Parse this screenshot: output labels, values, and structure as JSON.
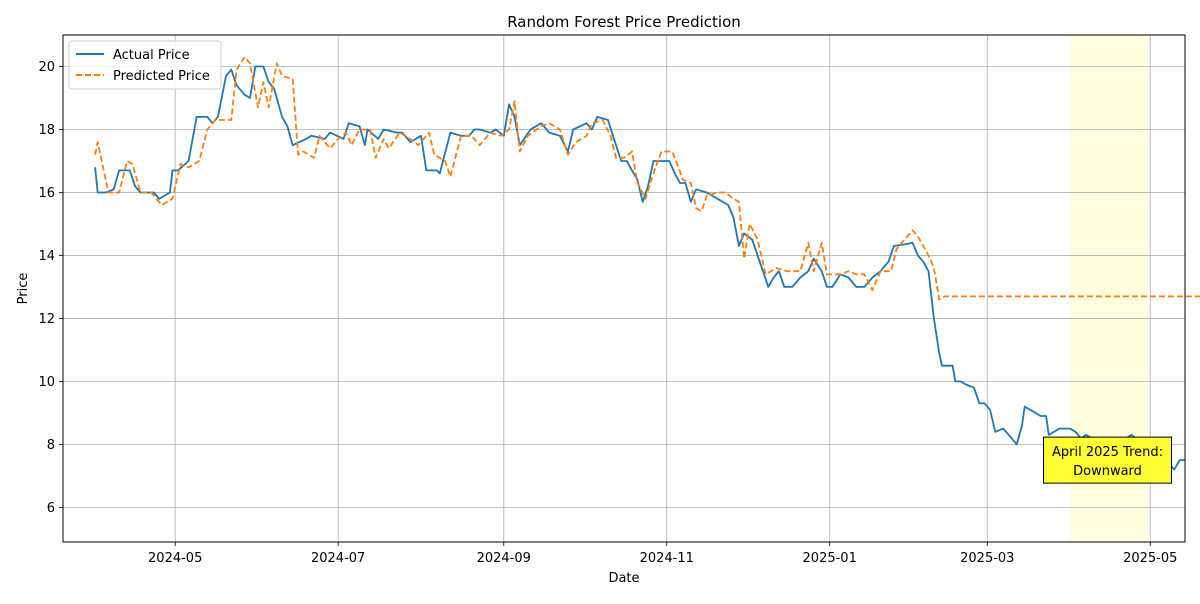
{
  "chart_data": {
    "type": "line",
    "title": "Random Forest Price Prediction",
    "xlabel": "Date",
    "ylabel": "Price",
    "x_tick_labels": [
      "2024-05",
      "2024-07",
      "2024-09",
      "2024-11",
      "2025-01",
      "2025-03",
      "2025-05"
    ],
    "x_ticks": [
      "2024-05-01",
      "2024-07-01",
      "2024-09-01",
      "2024-11-01",
      "2025-01-01",
      "2025-03-01",
      "2025-05-01"
    ],
    "y_ticks": [
      6,
      8,
      10,
      12,
      14,
      16,
      18,
      20
    ],
    "ylim": [
      4.9,
      21.0
    ],
    "xlim": [
      "2024-03-20",
      "2025-05-14"
    ],
    "grid": true,
    "legend_position": "top-left",
    "highlight_span": {
      "start": "2025-04-01",
      "end": "2025-04-30",
      "color": "#ffffe0"
    },
    "annotation": {
      "text_line1": "April 2025 Trend:",
      "text_line2": "Downward",
      "date": "2025-04-15",
      "y": 7.5,
      "color": "#ffff33"
    },
    "series": [
      {
        "name": "Actual Price",
        "color": "#1f77b4",
        "style": "solid",
        "points": [
          [
            "2024-04-01",
            16.8
          ],
          [
            "2024-04-02",
            16.0
          ],
          [
            "2024-04-05",
            16.0
          ],
          [
            "2024-04-08",
            16.1
          ],
          [
            "2024-04-10",
            16.7
          ],
          [
            "2024-04-14",
            16.7
          ],
          [
            "2024-04-16",
            16.2
          ],
          [
            "2024-04-18",
            16.0
          ],
          [
            "2024-04-23",
            16.0
          ],
          [
            "2024-04-25",
            15.8
          ],
          [
            "2024-04-29",
            16.0
          ],
          [
            "2024-04-30",
            16.7
          ],
          [
            "2024-05-02",
            16.7
          ],
          [
            "2024-05-06",
            17.0
          ],
          [
            "2024-05-09",
            18.4
          ],
          [
            "2024-05-13",
            18.4
          ],
          [
            "2024-05-15",
            18.2
          ],
          [
            "2024-05-17",
            18.4
          ],
          [
            "2024-05-20",
            19.7
          ],
          [
            "2024-05-22",
            19.9
          ],
          [
            "2024-05-24",
            19.4
          ],
          [
            "2024-05-27",
            19.1
          ],
          [
            "2024-05-29",
            19.0
          ],
          [
            "2024-05-31",
            20.0
          ],
          [
            "2024-06-03",
            20.0
          ],
          [
            "2024-06-05",
            19.5
          ],
          [
            "2024-06-07",
            19.3
          ],
          [
            "2024-06-10",
            18.4
          ],
          [
            "2024-06-12",
            18.1
          ],
          [
            "2024-06-14",
            17.5
          ],
          [
            "2024-06-19",
            17.7
          ],
          [
            "2024-06-21",
            17.8
          ],
          [
            "2024-06-26",
            17.7
          ],
          [
            "2024-06-28",
            17.9
          ],
          [
            "2024-07-03",
            17.7
          ],
          [
            "2024-07-05",
            18.2
          ],
          [
            "2024-07-09",
            18.1
          ],
          [
            "2024-07-11",
            17.5
          ],
          [
            "2024-07-12",
            18.0
          ],
          [
            "2024-07-16",
            17.7
          ],
          [
            "2024-07-18",
            18.0
          ],
          [
            "2024-07-23",
            17.9
          ],
          [
            "2024-07-25",
            17.9
          ],
          [
            "2024-07-28",
            17.6
          ],
          [
            "2024-08-01",
            17.8
          ],
          [
            "2024-08-03",
            16.7
          ],
          [
            "2024-08-07",
            16.7
          ],
          [
            "2024-08-08",
            16.6
          ],
          [
            "2024-08-12",
            17.9
          ],
          [
            "2024-08-16",
            17.8
          ],
          [
            "2024-08-19",
            17.8
          ],
          [
            "2024-08-21",
            18.0
          ],
          [
            "2024-08-23",
            18.0
          ],
          [
            "2024-08-27",
            17.9
          ],
          [
            "2024-08-29",
            18.0
          ],
          [
            "2024-09-01",
            17.8
          ],
          [
            "2024-09-03",
            18.8
          ],
          [
            "2024-09-05",
            18.4
          ],
          [
            "2024-09-07",
            17.5
          ],
          [
            "2024-09-11",
            18.0
          ],
          [
            "2024-09-15",
            18.2
          ],
          [
            "2024-09-18",
            17.9
          ],
          [
            "2024-09-22",
            17.8
          ],
          [
            "2024-09-25",
            17.3
          ],
          [
            "2024-09-27",
            18.0
          ],
          [
            "2024-10-02",
            18.2
          ],
          [
            "2024-10-04",
            18.0
          ],
          [
            "2024-10-06",
            18.4
          ],
          [
            "2024-10-10",
            18.3
          ],
          [
            "2024-10-13",
            17.5
          ],
          [
            "2024-10-15",
            17.0
          ],
          [
            "2024-10-17",
            17.0
          ],
          [
            "2024-10-21",
            16.4
          ],
          [
            "2024-10-23",
            15.7
          ],
          [
            "2024-10-25",
            16.2
          ],
          [
            "2024-10-27",
            17.0
          ],
          [
            "2024-10-31",
            17.0
          ],
          [
            "2024-11-02",
            17.0
          ],
          [
            "2024-11-04",
            16.6
          ],
          [
            "2024-11-06",
            16.3
          ],
          [
            "2024-11-08",
            16.3
          ],
          [
            "2024-11-10",
            15.7
          ],
          [
            "2024-11-12",
            16.1
          ],
          [
            "2024-11-16",
            16.0
          ],
          [
            "2024-11-20",
            15.8
          ],
          [
            "2024-11-24",
            15.6
          ],
          [
            "2024-11-26",
            15.2
          ],
          [
            "2024-11-28",
            14.3
          ],
          [
            "2024-11-30",
            14.7
          ],
          [
            "2024-12-03",
            14.5
          ],
          [
            "2024-12-05",
            14.0
          ],
          [
            "2024-12-09",
            13.0
          ],
          [
            "2024-12-11",
            13.3
          ],
          [
            "2024-12-13",
            13.5
          ],
          [
            "2024-12-15",
            13.0
          ],
          [
            "2024-12-18",
            13.0
          ],
          [
            "2024-12-21",
            13.3
          ],
          [
            "2024-12-24",
            13.5
          ],
          [
            "2024-12-26",
            13.9
          ],
          [
            "2024-12-29",
            13.5
          ],
          [
            "2024-12-31",
            13.0
          ],
          [
            "2025-01-02",
            13.0
          ],
          [
            "2025-01-05",
            13.4
          ],
          [
            "2025-01-08",
            13.3
          ],
          [
            "2025-01-11",
            13.0
          ],
          [
            "2025-01-14",
            13.0
          ],
          [
            "2025-01-17",
            13.3
          ],
          [
            "2025-01-20",
            13.5
          ],
          [
            "2025-01-23",
            13.8
          ],
          [
            "2025-01-25",
            14.3
          ],
          [
            "2025-01-29",
            14.35
          ],
          [
            "2025-02-01",
            14.4
          ],
          [
            "2025-02-03",
            14.0
          ],
          [
            "2025-02-05",
            13.8
          ],
          [
            "2025-02-07",
            13.5
          ],
          [
            "2025-02-09",
            12.0
          ],
          [
            "2025-02-11",
            10.9
          ],
          [
            "2025-02-12",
            10.5
          ],
          [
            "2025-02-16",
            10.5
          ],
          [
            "2025-02-17",
            10.0
          ],
          [
            "2025-02-19",
            10.0
          ],
          [
            "2025-02-21",
            9.9
          ],
          [
            "2025-02-24",
            9.8
          ],
          [
            "2025-02-26",
            9.3
          ],
          [
            "2025-02-28",
            9.3
          ],
          [
            "2025-03-02",
            9.1
          ],
          [
            "2025-03-04",
            8.4
          ],
          [
            "2025-03-07",
            8.5
          ],
          [
            "2025-03-10",
            8.2
          ],
          [
            "2025-03-12",
            8.0
          ],
          [
            "2025-03-14",
            8.6
          ],
          [
            "2025-03-15",
            9.2
          ],
          [
            "2025-03-17",
            9.1
          ],
          [
            "2025-03-21",
            8.9
          ],
          [
            "2025-03-23",
            8.9
          ],
          [
            "2025-03-24",
            8.3
          ],
          [
            "2025-03-28",
            8.5
          ],
          [
            "2025-04-01",
            8.5
          ],
          [
            "2025-04-03",
            8.4
          ],
          [
            "2025-04-05",
            8.2
          ],
          [
            "2025-04-07",
            8.3
          ],
          [
            "2025-04-09",
            8.2
          ],
          [
            "2025-04-12",
            8.0
          ],
          [
            "2025-04-14",
            8.1
          ],
          [
            "2025-04-16",
            7.9
          ],
          [
            "2025-04-20",
            7.9
          ],
          [
            "2025-04-22",
            8.2
          ],
          [
            "2025-04-24",
            8.3
          ],
          [
            "2025-04-27",
            8.1
          ],
          [
            "2025-04-30",
            8.0
          ],
          [
            "2025-05-02",
            7.8
          ],
          [
            "2025-05-04",
            7.4
          ],
          [
            "2025-05-06",
            7.2
          ],
          [
            "2025-05-08",
            7.4
          ],
          [
            "2025-05-10",
            7.2
          ],
          [
            "2025-05-12",
            7.5
          ],
          [
            "2025-05-14",
            7.5
          ]
        ]
      },
      {
        "name": "Predicted Price",
        "color": "#ff7f0e",
        "style": "dashed",
        "points": [
          [
            "2024-04-01",
            17.2
          ],
          [
            "2024-04-02",
            17.6
          ],
          [
            "2024-04-06",
            16.0
          ],
          [
            "2024-04-10",
            16.0
          ],
          [
            "2024-04-13",
            17.0
          ],
          [
            "2024-04-15",
            16.9
          ],
          [
            "2024-04-18",
            16.0
          ],
          [
            "2024-04-22",
            16.0
          ],
          [
            "2024-04-26",
            15.6
          ],
          [
            "2024-04-30",
            15.8
          ],
          [
            "2024-05-03",
            16.9
          ],
          [
            "2024-05-06",
            16.8
          ],
          [
            "2024-05-10",
            17.0
          ],
          [
            "2024-05-13",
            18.0
          ],
          [
            "2024-05-16",
            18.3
          ],
          [
            "2024-05-20",
            18.3
          ],
          [
            "2024-05-22",
            18.3
          ],
          [
            "2024-05-24",
            19.9
          ],
          [
            "2024-05-27",
            20.3
          ],
          [
            "2024-05-29",
            20.1
          ],
          [
            "2024-06-01",
            18.7
          ],
          [
            "2024-06-03",
            19.5
          ],
          [
            "2024-06-05",
            18.7
          ],
          [
            "2024-06-08",
            20.1
          ],
          [
            "2024-06-10",
            19.7
          ],
          [
            "2024-06-14",
            19.6
          ],
          [
            "2024-06-16",
            17.2
          ],
          [
            "2024-06-18",
            17.3
          ],
          [
            "2024-06-22",
            17.1
          ],
          [
            "2024-06-24",
            17.8
          ],
          [
            "2024-06-28",
            17.4
          ],
          [
            "2024-07-01",
            17.7
          ],
          [
            "2024-07-04",
            17.9
          ],
          [
            "2024-07-06",
            17.5
          ],
          [
            "2024-07-09",
            18.0
          ],
          [
            "2024-07-13",
            18.0
          ],
          [
            "2024-07-15",
            17.1
          ],
          [
            "2024-07-18",
            17.7
          ],
          [
            "2024-07-20",
            17.4
          ],
          [
            "2024-07-24",
            17.9
          ],
          [
            "2024-07-28",
            17.7
          ],
          [
            "2024-07-31",
            17.5
          ],
          [
            "2024-08-04",
            17.9
          ],
          [
            "2024-08-06",
            17.2
          ],
          [
            "2024-08-10",
            17.0
          ],
          [
            "2024-08-12",
            16.5
          ],
          [
            "2024-08-16",
            17.8
          ],
          [
            "2024-08-20",
            17.8
          ],
          [
            "2024-08-23",
            17.5
          ],
          [
            "2024-08-27",
            17.9
          ],
          [
            "2024-08-31",
            17.8
          ],
          [
            "2024-09-03",
            18.0
          ],
          [
            "2024-09-05",
            18.9
          ],
          [
            "2024-09-07",
            17.3
          ],
          [
            "2024-09-10",
            17.8
          ],
          [
            "2024-09-15",
            18.1
          ],
          [
            "2024-09-18",
            18.2
          ],
          [
            "2024-09-22",
            18.0
          ],
          [
            "2024-09-25",
            17.2
          ],
          [
            "2024-09-28",
            17.6
          ],
          [
            "2024-10-02",
            17.8
          ],
          [
            "2024-10-04",
            18.2
          ],
          [
            "2024-10-08",
            18.3
          ],
          [
            "2024-10-11",
            17.8
          ],
          [
            "2024-10-13",
            17.1
          ],
          [
            "2024-10-16",
            17.1
          ],
          [
            "2024-10-19",
            17.3
          ],
          [
            "2024-10-21",
            16.3
          ],
          [
            "2024-10-24",
            15.8
          ],
          [
            "2024-10-27",
            16.6
          ],
          [
            "2024-10-30",
            17.3
          ],
          [
            "2024-11-03",
            17.3
          ],
          [
            "2024-11-05",
            16.9
          ],
          [
            "2024-11-07",
            16.4
          ],
          [
            "2024-11-10",
            16.3
          ],
          [
            "2024-11-12",
            15.5
          ],
          [
            "2024-11-14",
            15.4
          ],
          [
            "2024-11-16",
            15.9
          ],
          [
            "2024-11-20",
            16.0
          ],
          [
            "2024-11-23",
            16.0
          ],
          [
            "2024-11-26",
            15.8
          ],
          [
            "2024-11-28",
            15.7
          ],
          [
            "2024-11-30",
            13.9
          ],
          [
            "2024-12-02",
            15.0
          ],
          [
            "2024-12-05",
            14.5
          ],
          [
            "2024-12-08",
            13.4
          ],
          [
            "2024-12-12",
            13.6
          ],
          [
            "2024-12-16",
            13.5
          ],
          [
            "2024-12-21",
            13.5
          ],
          [
            "2024-12-24",
            14.4
          ],
          [
            "2024-12-26",
            13.5
          ],
          [
            "2024-12-29",
            14.4
          ],
          [
            "2024-12-31",
            13.4
          ],
          [
            "2025-01-05",
            13.4
          ],
          [
            "2025-01-08",
            13.5
          ],
          [
            "2025-01-11",
            13.4
          ],
          [
            "2025-01-14",
            13.4
          ],
          [
            "2025-01-17",
            12.9
          ],
          [
            "2025-01-20",
            13.5
          ],
          [
            "2025-01-24",
            13.5
          ],
          [
            "2025-01-26",
            14.2
          ],
          [
            "2025-01-29",
            14.5
          ],
          [
            "2025-02-01",
            14.8
          ],
          [
            "2025-02-03",
            14.6
          ],
          [
            "2025-02-07",
            14.0
          ],
          [
            "2025-02-09",
            13.6
          ],
          [
            "2025-02-11",
            12.6
          ],
          [
            "2025-02-13",
            12.7
          ],
          [
            "2025-05-31",
            12.7
          ]
        ]
      }
    ]
  }
}
